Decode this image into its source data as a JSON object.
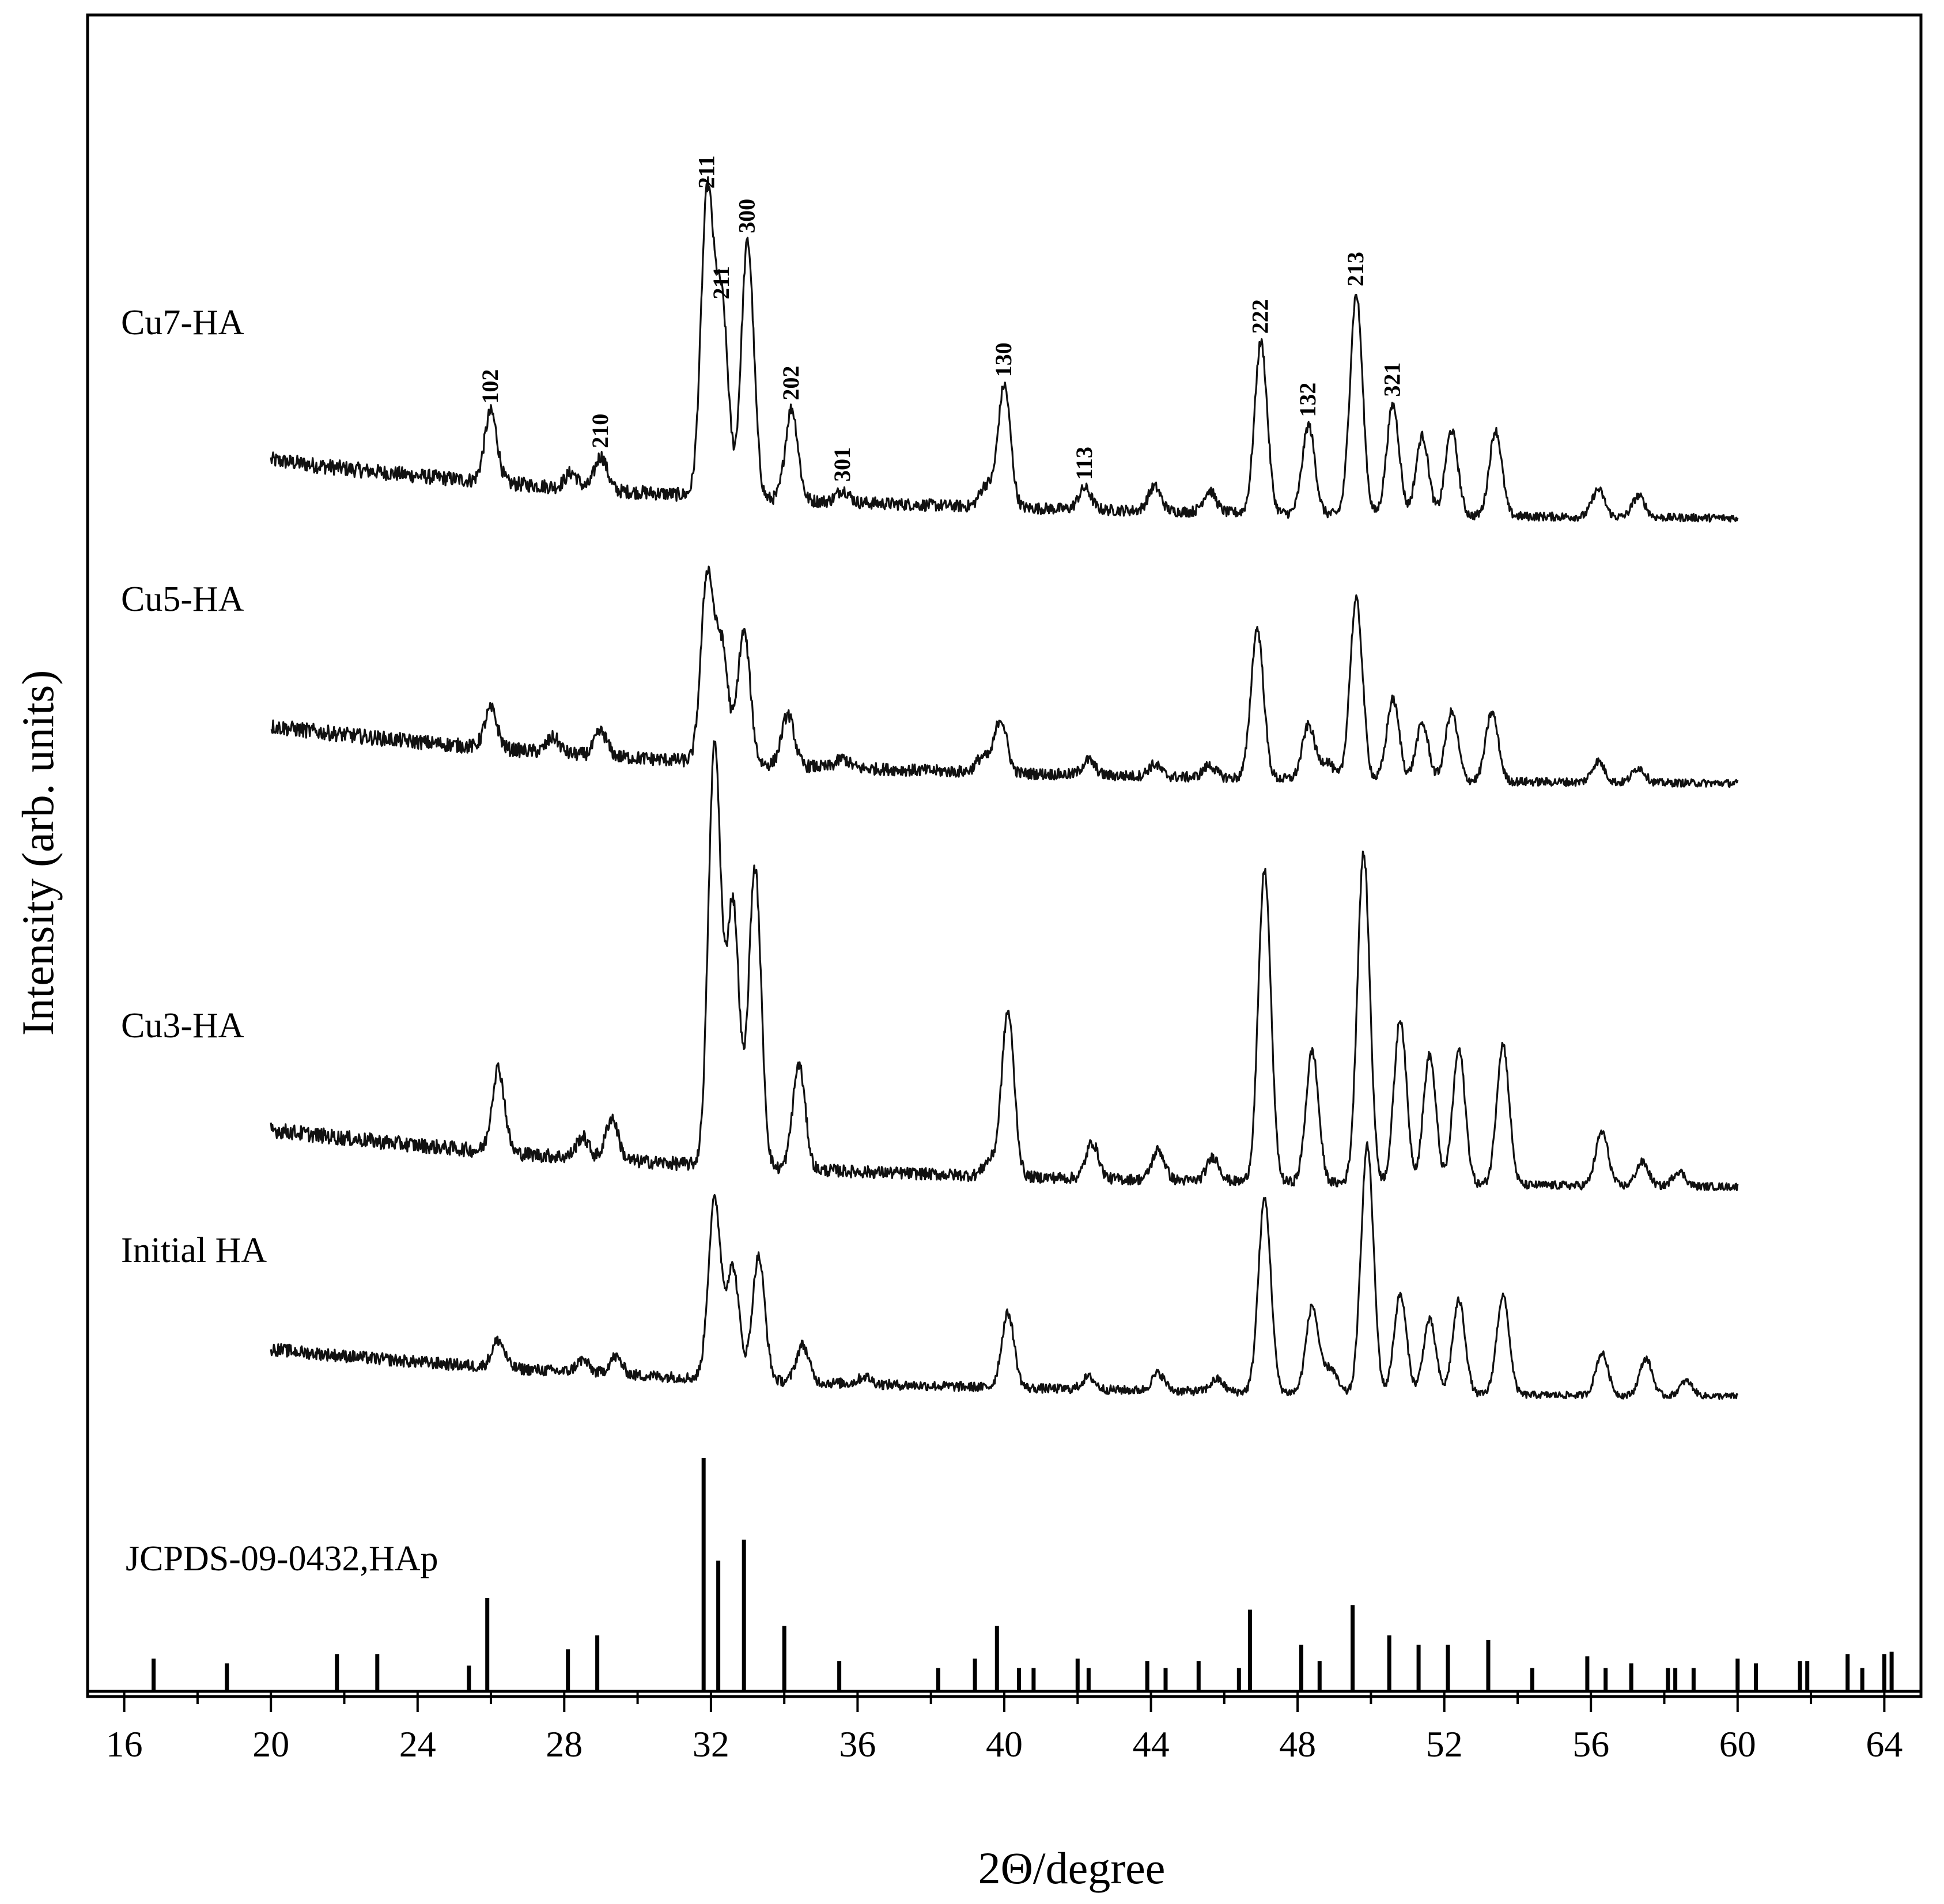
{
  "chart_data": {
    "type": "line",
    "xlabel": "2Θ/degree",
    "ylabel": "Intensity (arb. units)",
    "xlim": [
      15,
      65
    ],
    "xticks": [
      16,
      20,
      24,
      28,
      32,
      36,
      40,
      44,
      48,
      52,
      56,
      60,
      64
    ],
    "x_range_measured": [
      20,
      60
    ],
    "series": [
      {
        "name": "Cu7-HA",
        "baseline_start": 0.2,
        "baseline_end": 0.03,
        "peaks": [
          {
            "x": 26.0,
            "h": 0.23
          },
          {
            "x": 28.2,
            "h": 0.05
          },
          {
            "x": 29.0,
            "h": 0.11
          },
          {
            "x": 31.9,
            "h": 0.98
          },
          {
            "x": 32.3,
            "h": 0.62
          },
          {
            "x": 33.0,
            "h": 0.84
          },
          {
            "x": 34.2,
            "h": 0.3
          },
          {
            "x": 35.6,
            "h": 0.04
          },
          {
            "x": 39.5,
            "h": 0.07
          },
          {
            "x": 40.0,
            "h": 0.4
          },
          {
            "x": 42.2,
            "h": 0.07
          },
          {
            "x": 44.1,
            "h": 0.08
          },
          {
            "x": 45.6,
            "h": 0.07
          },
          {
            "x": 47.0,
            "h": 0.56
          },
          {
            "x": 48.3,
            "h": 0.29
          },
          {
            "x": 49.6,
            "h": 0.72
          },
          {
            "x": 50.6,
            "h": 0.36
          },
          {
            "x": 51.4,
            "h": 0.26
          },
          {
            "x": 52.2,
            "h": 0.28
          },
          {
            "x": 53.4,
            "h": 0.28
          },
          {
            "x": 56.2,
            "h": 0.09
          },
          {
            "x": 57.3,
            "h": 0.07
          }
        ]
      },
      {
        "name": "Cu5-HA",
        "baseline_start": 0.2,
        "baseline_end": 0.03,
        "peaks": [
          {
            "x": 26.0,
            "h": 0.13
          },
          {
            "x": 27.7,
            "h": 0.05
          },
          {
            "x": 29.0,
            "h": 0.08
          },
          {
            "x": 31.9,
            "h": 0.62
          },
          {
            "x": 32.3,
            "h": 0.38
          },
          {
            "x": 32.9,
            "h": 0.44
          },
          {
            "x": 34.1,
            "h": 0.17
          },
          {
            "x": 35.6,
            "h": 0.03
          },
          {
            "x": 39.4,
            "h": 0.05
          },
          {
            "x": 39.9,
            "h": 0.18
          },
          {
            "x": 42.3,
            "h": 0.05
          },
          {
            "x": 44.1,
            "h": 0.04
          },
          {
            "x": 45.6,
            "h": 0.04
          },
          {
            "x": 46.9,
            "h": 0.5
          },
          {
            "x": 48.3,
            "h": 0.18
          },
          {
            "x": 48.8,
            "h": 0.06
          },
          {
            "x": 49.6,
            "h": 0.6
          },
          {
            "x": 50.6,
            "h": 0.27
          },
          {
            "x": 51.4,
            "h": 0.19
          },
          {
            "x": 52.2,
            "h": 0.23
          },
          {
            "x": 53.3,
            "h": 0.23
          },
          {
            "x": 56.2,
            "h": 0.07
          },
          {
            "x": 57.3,
            "h": 0.05
          }
        ]
      },
      {
        "name": "Cu3-HA",
        "baseline_start": 0.2,
        "baseline_end": 0.03,
        "peaks": [
          {
            "x": 26.2,
            "h": 0.28
          },
          {
            "x": 28.5,
            "h": 0.07
          },
          {
            "x": 29.3,
            "h": 0.14
          },
          {
            "x": 32.1,
            "h": 1.4
          },
          {
            "x": 32.6,
            "h": 0.88
          },
          {
            "x": 33.2,
            "h": 1.0
          },
          {
            "x": 34.4,
            "h": 0.35
          },
          {
            "x": 39.6,
            "h": 0.05
          },
          {
            "x": 40.1,
            "h": 0.55
          },
          {
            "x": 42.4,
            "h": 0.12
          },
          {
            "x": 44.2,
            "h": 0.1
          },
          {
            "x": 45.7,
            "h": 0.08
          },
          {
            "x": 47.1,
            "h": 1.04
          },
          {
            "x": 48.4,
            "h": 0.44
          },
          {
            "x": 49.8,
            "h": 1.1
          },
          {
            "x": 50.8,
            "h": 0.55
          },
          {
            "x": 51.6,
            "h": 0.43
          },
          {
            "x": 52.4,
            "h": 0.45
          },
          {
            "x": 53.6,
            "h": 0.47
          },
          {
            "x": 56.3,
            "h": 0.18
          },
          {
            "x": 57.4,
            "h": 0.08
          },
          {
            "x": 58.4,
            "h": 0.05
          }
        ]
      },
      {
        "name": "Initial HA",
        "baseline_start": 0.2,
        "baseline_end": 0.03,
        "peaks": [
          {
            "x": 26.2,
            "h": 0.11
          },
          {
            "x": 28.5,
            "h": 0.05
          },
          {
            "x": 29.4,
            "h": 0.07
          },
          {
            "x": 32.1,
            "h": 0.72
          },
          {
            "x": 32.6,
            "h": 0.45
          },
          {
            "x": 33.3,
            "h": 0.5
          },
          {
            "x": 34.5,
            "h": 0.15
          },
          {
            "x": 36.2,
            "h": 0.03
          },
          {
            "x": 40.1,
            "h": 0.3
          },
          {
            "x": 42.3,
            "h": 0.05
          },
          {
            "x": 44.2,
            "h": 0.07
          },
          {
            "x": 45.8,
            "h": 0.05
          },
          {
            "x": 47.1,
            "h": 0.78
          },
          {
            "x": 48.4,
            "h": 0.35
          },
          {
            "x": 48.9,
            "h": 0.1
          },
          {
            "x": 49.9,
            "h": 1.0
          },
          {
            "x": 50.8,
            "h": 0.4
          },
          {
            "x": 51.6,
            "h": 0.3
          },
          {
            "x": 52.4,
            "h": 0.38
          },
          {
            "x": 53.6,
            "h": 0.4
          },
          {
            "x": 56.3,
            "h": 0.17
          },
          {
            "x": 57.5,
            "h": 0.15
          },
          {
            "x": 58.6,
            "h": 0.06
          }
        ]
      }
    ],
    "reference": {
      "name": "JCPDS-09-0432,HAp",
      "x": [
        16.8,
        18.8,
        21.8,
        22.9,
        25.4,
        25.9,
        28.1,
        28.9,
        31.8,
        32.2,
        32.9,
        34.0,
        35.5,
        38.2,
        39.2,
        39.8,
        40.4,
        40.8,
        42.0,
        42.3,
        43.9,
        44.4,
        45.3,
        46.4,
        46.7,
        48.1,
        48.6,
        49.5,
        50.5,
        51.3,
        52.1,
        53.2,
        54.4,
        55.9,
        56.4,
        57.1,
        58.1,
        58.3,
        58.8,
        60.0,
        60.5,
        61.7,
        61.9,
        63.0,
        63.4,
        64.0,
        64.2
      ],
      "h": [
        0.14,
        0.12,
        0.16,
        0.16,
        0.11,
        0.4,
        0.18,
        0.24,
        1.0,
        0.56,
        0.65,
        0.28,
        0.13,
        0.1,
        0.14,
        0.28,
        0.1,
        0.1,
        0.14,
        0.1,
        0.13,
        0.1,
        0.13,
        0.1,
        0.35,
        0.2,
        0.13,
        0.37,
        0.24,
        0.2,
        0.2,
        0.22,
        0.1,
        0.15,
        0.1,
        0.12,
        0.1,
        0.1,
        0.1,
        0.14,
        0.12,
        0.13,
        0.13,
        0.16,
        0.1,
        0.16,
        0.17
      ]
    },
    "hkl_labels": [
      {
        "text": "102",
        "x": 26.0
      },
      {
        "text": "210",
        "x": 29.0
      },
      {
        "text": "211",
        "x": 31.9
      },
      {
        "text": "211",
        "x": 32.3
      },
      {
        "text": "300",
        "x": 33.0
      },
      {
        "text": "202",
        "x": 34.2
      },
      {
        "text": "301",
        "x": 35.6
      },
      {
        "text": "130",
        "x": 40.0
      },
      {
        "text": "113",
        "x": 42.2
      },
      {
        "text": "222",
        "x": 47.0
      },
      {
        "text": "132",
        "x": 48.3
      },
      {
        "text": "213",
        "x": 49.6
      },
      {
        "text": "321",
        "x": 50.6
      }
    ]
  }
}
